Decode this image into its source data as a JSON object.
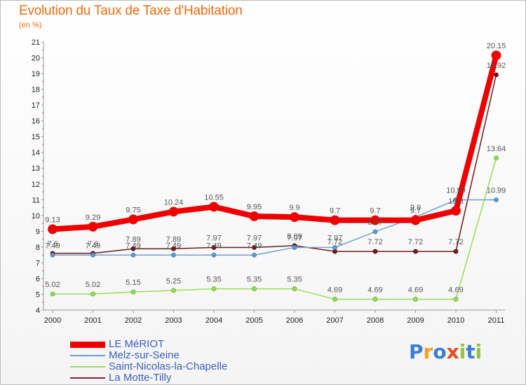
{
  "header": {
    "title": "Evolution du Taux de Taxe d'Habitation",
    "unit": "(en %)"
  },
  "logo": {
    "text": "Proxiti"
  },
  "chart_data": {
    "type": "line",
    "title": "Evolution du Taux de Taxe d'Habitation",
    "ylabel": "(en %)",
    "xlabel": "",
    "x": [
      "2000",
      "2001",
      "2002",
      "2003",
      "2004",
      "2005",
      "2006",
      "2007",
      "2008",
      "2009",
      "2010",
      "2011"
    ],
    "ylim": [
      4,
      21
    ],
    "yticks": [
      4,
      5,
      6,
      7,
      8,
      9,
      10,
      11,
      12,
      13,
      14,
      15,
      16,
      17,
      18,
      19,
      20,
      21
    ],
    "grid": false,
    "legend_position": "bottom-left",
    "series": [
      {
        "name": "La Motte-Tilly",
        "color": "#6e1a1a",
        "values": [
          7.6,
          7.6,
          7.89,
          7.89,
          7.97,
          7.97,
          8.09,
          7.72,
          7.72,
          7.72,
          7.72,
          18.92
        ],
        "labels": [
          "7.6",
          "7.6",
          "7.89",
          "7.89",
          "7.97",
          "7.97",
          "8.09",
          "7.72",
          "7.72",
          "7.72",
          "7.72",
          "18.92"
        ]
      },
      {
        "name": "Saint-Nicolas-la-Chapelle",
        "color": "#99dd55",
        "values": [
          5.02,
          5.02,
          5.15,
          5.25,
          5.35,
          5.35,
          5.35,
          4.69,
          4.69,
          4.69,
          4.69,
          13.64
        ],
        "labels": [
          "5.02",
          "5.02",
          "5.15",
          "5.25",
          "5.35",
          "5.35",
          "5.35",
          "4.69",
          "4.69",
          "4.69",
          "4.69",
          "13.64"
        ]
      },
      {
        "name": "Melz-sur-Seine",
        "color": "#6f9fcf",
        "values": [
          7.49,
          7.49,
          7.49,
          7.49,
          7.49,
          7.49,
          7.97,
          7.97,
          8.97,
          9.9,
          10.99,
          10.99
        ],
        "labels": [
          "7.49",
          "7.49",
          "7.49",
          "7.49",
          "7.49",
          "7.49",
          "7.97",
          "7.97",
          "8.97",
          "9.9",
          "10.99",
          "10.99"
        ]
      },
      {
        "name": "LE MéRIOT",
        "color": "#ee0000",
        "values": [
          9.13,
          9.29,
          9.75,
          10.24,
          10.55,
          9.95,
          9.9,
          9.7,
          9.7,
          9.7,
          10.3,
          20.15
        ],
        "labels": [
          "9.13",
          "9.29",
          "9.75",
          "10.24",
          "10.55",
          "9.95",
          "9.9",
          "9.7",
          "9.7",
          "9.7",
          "10.3",
          "20.15"
        ]
      }
    ]
  },
  "legend": {
    "items": [
      {
        "name": "LE MéRIOT",
        "color": "#ee0000",
        "width": 9
      },
      {
        "name": "Melz-sur-Seine",
        "color": "#6f9fcf",
        "width": 2
      },
      {
        "name": "Saint-Nicolas-la-Chapelle",
        "color": "#99dd55",
        "width": 2
      },
      {
        "name": "La Motte-Tilly",
        "color": "#7a2a2a",
        "width": 2
      }
    ]
  },
  "colors": {
    "title": "#ee6b0e",
    "axis": "#999999",
    "tick_text": "#222222",
    "label_text": "#555555",
    "legend_text": "#3b5fbf"
  }
}
